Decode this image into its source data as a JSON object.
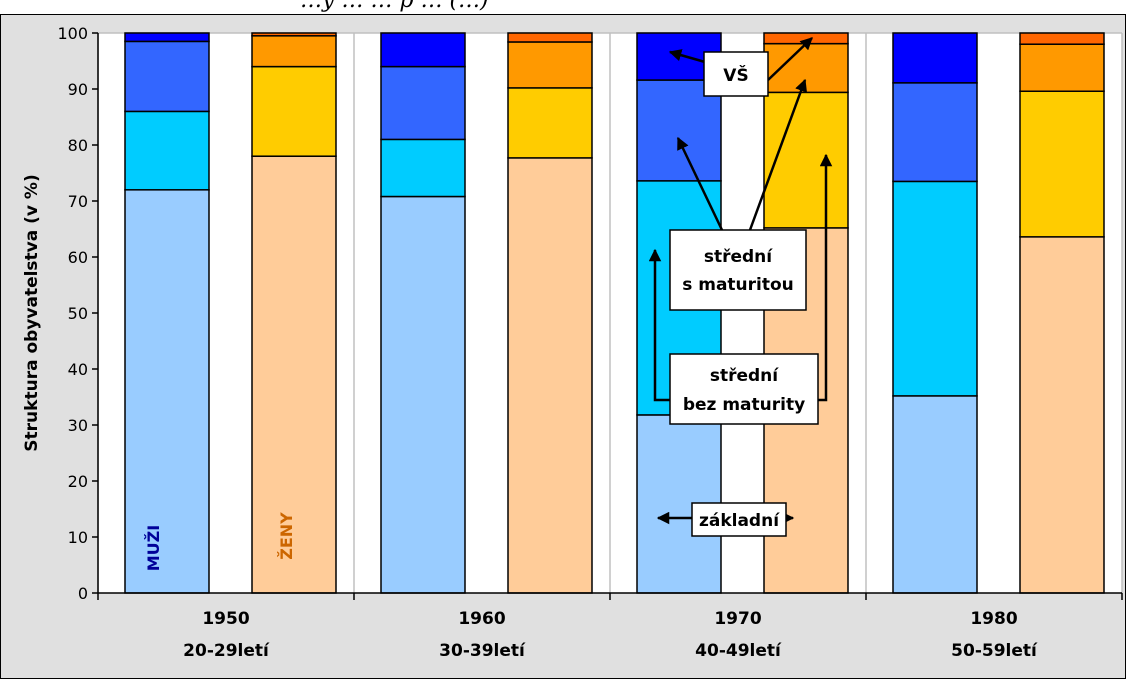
{
  "chart_data": {
    "type": "bar",
    "title": "…y … … p … (…)",
    "ylabel": "Struktura obyvatelstva (v %)",
    "ylim": [
      0,
      100
    ],
    "yticks": [
      0,
      10,
      20,
      30,
      40,
      50,
      60,
      70,
      80,
      90,
      100
    ],
    "grid": true,
    "groups": [
      {
        "year": "1950",
        "age": "20-29letí"
      },
      {
        "year": "1960",
        "age": "30-39letí"
      },
      {
        "year": "1970",
        "age": "40-49letí"
      },
      {
        "year": "1980",
        "age": "50-59letí"
      }
    ],
    "gender_labels": {
      "men": "MUŽI",
      "women": "ŽENY"
    },
    "segments": [
      "základní",
      "střední bez maturity",
      "střední s maturitou",
      "VŠ"
    ],
    "colors": {
      "men": [
        "#99ccff",
        "#00ccff",
        "#3366ff",
        "#0000ff"
      ],
      "women": [
        "#ffcc99",
        "#ffcc00",
        "#ff9900",
        "#ff6600"
      ],
      "background": "#e0e0e0"
    },
    "series": [
      {
        "group": "1950",
        "gender": "men",
        "values": [
          72,
          14,
          12.5,
          1.5
        ]
      },
      {
        "group": "1950",
        "gender": "women",
        "values": [
          78,
          16,
          5.5,
          0.5
        ]
      },
      {
        "group": "1960",
        "gender": "men",
        "values": [
          70.8,
          10.2,
          13,
          6
        ]
      },
      {
        "group": "1960",
        "gender": "women",
        "values": [
          77.7,
          12.5,
          8.2,
          1.6
        ]
      },
      {
        "group": "1970",
        "gender": "men",
        "values": [
          31.8,
          41.8,
          18,
          8.4
        ]
      },
      {
        "group": "1970",
        "gender": "women",
        "values": [
          65.2,
          24.2,
          8.7,
          1.9
        ]
      },
      {
        "group": "1980",
        "gender": "men",
        "values": [
          35.2,
          38.3,
          17.6,
          8.9
        ]
      },
      {
        "group": "1980",
        "gender": "women",
        "values": [
          63.6,
          26,
          8.4,
          2
        ]
      }
    ],
    "annotations": {
      "vs": "VŠ",
      "stredni_s_maturitou": [
        "střední",
        "s maturitou"
      ],
      "stredni_bez_maturity": [
        "střední",
        "bez maturity"
      ],
      "zakladni": "základní"
    }
  }
}
